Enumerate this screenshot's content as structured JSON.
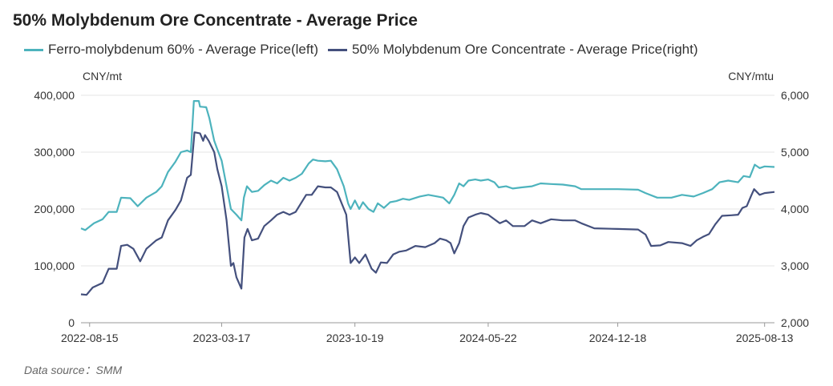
{
  "chart_data": {
    "type": "line",
    "title": "50% Molybdenum Ore Concentrate - Average Price",
    "legend_position": "top-left",
    "grid": true,
    "y_left": {
      "unit": "CNY/mt",
      "ylim": [
        0,
        400000
      ],
      "ticks": [
        "0",
        "100,000",
        "200,000",
        "300,000",
        "400,000"
      ]
    },
    "y_right": {
      "unit": "CNY/mtu",
      "ylim": [
        2000,
        6000
      ],
      "ticks": [
        "2,000",
        "3,000",
        "4,000",
        "5,000",
        "6,000"
      ]
    },
    "x_ticks": [
      "2022-08-15",
      "2023-03-17",
      "2023-10-19",
      "2024-05-22",
      "2024-12-18",
      "2025-08-13"
    ],
    "x_range": [
      "2022-08-01",
      "2025-08-29"
    ],
    "series": [
      {
        "name": "Ferro-molybdenum 60% - Average Price(left)",
        "axis": "left",
        "color": "#4db3bd",
        "points": [
          [
            "2022-08-01",
            166000
          ],
          [
            "2022-08-08",
            163000
          ],
          [
            "2022-08-22",
            175000
          ],
          [
            "2022-09-05",
            182000
          ],
          [
            "2022-09-15",
            195000
          ],
          [
            "2022-09-28",
            195000
          ],
          [
            "2022-10-05",
            220000
          ],
          [
            "2022-10-20",
            219000
          ],
          [
            "2022-11-01",
            205000
          ],
          [
            "2022-11-15",
            220000
          ],
          [
            "2022-12-01",
            230000
          ],
          [
            "2022-12-10",
            240000
          ],
          [
            "2022-12-20",
            265000
          ],
          [
            "2023-01-01",
            283000
          ],
          [
            "2023-01-10",
            300000
          ],
          [
            "2023-01-20",
            303000
          ],
          [
            "2023-01-26",
            300000
          ],
          [
            "2023-01-31",
            390000
          ],
          [
            "2023-02-08",
            390000
          ],
          [
            "2023-02-10",
            380000
          ],
          [
            "2023-02-20",
            379000
          ],
          [
            "2023-02-25",
            360000
          ],
          [
            "2023-03-05",
            320000
          ],
          [
            "2023-03-10",
            305000
          ],
          [
            "2023-03-17",
            285000
          ],
          [
            "2023-03-25",
            240000
          ],
          [
            "2023-04-01",
            200000
          ],
          [
            "2023-04-10",
            190000
          ],
          [
            "2023-04-18",
            180000
          ],
          [
            "2023-04-22",
            220000
          ],
          [
            "2023-04-27",
            240000
          ],
          [
            "2023-05-05",
            230000
          ],
          [
            "2023-05-15",
            232000
          ],
          [
            "2023-05-25",
            242000
          ],
          [
            "2023-06-05",
            250000
          ],
          [
            "2023-06-15",
            245000
          ],
          [
            "2023-06-25",
            255000
          ],
          [
            "2023-07-05",
            250000
          ],
          [
            "2023-07-15",
            255000
          ],
          [
            "2023-07-25",
            262000
          ],
          [
            "2023-08-05",
            280000
          ],
          [
            "2023-08-12",
            287000
          ],
          [
            "2023-08-20",
            285000
          ],
          [
            "2023-09-01",
            284000
          ],
          [
            "2023-09-10",
            285000
          ],
          [
            "2023-09-20",
            270000
          ],
          [
            "2023-10-01",
            240000
          ],
          [
            "2023-10-08",
            210000
          ],
          [
            "2023-10-12",
            200000
          ],
          [
            "2023-10-19",
            215000
          ],
          [
            "2023-10-26",
            200000
          ],
          [
            "2023-11-01",
            212000
          ],
          [
            "2023-11-10",
            200000
          ],
          [
            "2023-11-18",
            195000
          ],
          [
            "2023-11-25",
            210000
          ],
          [
            "2023-12-05",
            202000
          ],
          [
            "2023-12-15",
            212000
          ],
          [
            "2023-12-25",
            214000
          ],
          [
            "2024-01-05",
            218000
          ],
          [
            "2024-01-15",
            216000
          ],
          [
            "2024-02-01",
            222000
          ],
          [
            "2024-02-15",
            225000
          ],
          [
            "2024-03-01",
            222000
          ],
          [
            "2024-03-10",
            220000
          ],
          [
            "2024-03-20",
            210000
          ],
          [
            "2024-03-28",
            225000
          ],
          [
            "2024-04-05",
            245000
          ],
          [
            "2024-04-12",
            240000
          ],
          [
            "2024-04-20",
            250000
          ],
          [
            "2024-05-01",
            252000
          ],
          [
            "2024-05-10",
            250000
          ],
          [
            "2024-05-22",
            252000
          ],
          [
            "2024-06-01",
            247000
          ],
          [
            "2024-06-08",
            238000
          ],
          [
            "2024-06-20",
            240000
          ],
          [
            "2024-07-01",
            236000
          ],
          [
            "2024-07-15",
            238000
          ],
          [
            "2024-08-01",
            240000
          ],
          [
            "2024-08-15",
            245000
          ],
          [
            "2024-09-01",
            244000
          ],
          [
            "2024-09-20",
            243000
          ],
          [
            "2024-10-10",
            240000
          ],
          [
            "2024-10-20",
            235000
          ],
          [
            "2024-11-15",
            235000
          ],
          [
            "2024-12-18",
            235000
          ],
          [
            "2025-01-20",
            234000
          ],
          [
            "2025-02-01",
            228000
          ],
          [
            "2025-02-20",
            220000
          ],
          [
            "2025-03-15",
            220000
          ],
          [
            "2025-04-01",
            225000
          ],
          [
            "2025-04-20",
            222000
          ],
          [
            "2025-05-05",
            228000
          ],
          [
            "2025-05-20",
            235000
          ],
          [
            "2025-06-01",
            247000
          ],
          [
            "2025-06-15",
            250000
          ],
          [
            "2025-07-01",
            247000
          ],
          [
            "2025-07-10",
            258000
          ],
          [
            "2025-07-20",
            256000
          ],
          [
            "2025-07-28",
            278000
          ],
          [
            "2025-08-05",
            272000
          ],
          [
            "2025-08-13",
            275000
          ],
          [
            "2025-08-29",
            274000
          ]
        ]
      },
      {
        "name": "50% Molybdenum Ore Concentrate - Average Price(right)",
        "axis": "right",
        "color": "#44507d",
        "points": [
          [
            "2022-08-01",
            2500
          ],
          [
            "2022-08-10",
            2490
          ],
          [
            "2022-08-20",
            2620
          ],
          [
            "2022-09-05",
            2700
          ],
          [
            "2022-09-15",
            2950
          ],
          [
            "2022-09-28",
            2950
          ],
          [
            "2022-10-05",
            3350
          ],
          [
            "2022-10-15",
            3370
          ],
          [
            "2022-10-25",
            3300
          ],
          [
            "2022-11-05",
            3080
          ],
          [
            "2022-11-15",
            3300
          ],
          [
            "2022-12-01",
            3450
          ],
          [
            "2022-12-10",
            3500
          ],
          [
            "2022-12-20",
            3800
          ],
          [
            "2023-01-01",
            3980
          ],
          [
            "2023-01-10",
            4150
          ],
          [
            "2023-01-20",
            4550
          ],
          [
            "2023-01-26",
            4600
          ],
          [
            "2023-02-01",
            5350
          ],
          [
            "2023-02-10",
            5330
          ],
          [
            "2023-02-15",
            5200
          ],
          [
            "2023-02-18",
            5300
          ],
          [
            "2023-02-24",
            5200
          ],
          [
            "2023-03-05",
            5000
          ],
          [
            "2023-03-10",
            4700
          ],
          [
            "2023-03-17",
            4400
          ],
          [
            "2023-03-25",
            3800
          ],
          [
            "2023-04-01",
            3000
          ],
          [
            "2023-04-05",
            3050
          ],
          [
            "2023-04-10",
            2800
          ],
          [
            "2023-04-18",
            2600
          ],
          [
            "2023-04-23",
            3500
          ],
          [
            "2023-04-28",
            3650
          ],
          [
            "2023-05-05",
            3450
          ],
          [
            "2023-05-15",
            3480
          ],
          [
            "2023-05-25",
            3700
          ],
          [
            "2023-06-05",
            3800
          ],
          [
            "2023-06-15",
            3900
          ],
          [
            "2023-06-25",
            3950
          ],
          [
            "2023-07-05",
            3900
          ],
          [
            "2023-07-15",
            3950
          ],
          [
            "2023-08-01",
            4250
          ],
          [
            "2023-08-10",
            4250
          ],
          [
            "2023-08-20",
            4400
          ],
          [
            "2023-09-01",
            4380
          ],
          [
            "2023-09-10",
            4380
          ],
          [
            "2023-09-20",
            4300
          ],
          [
            "2023-10-05",
            3900
          ],
          [
            "2023-10-12",
            3050
          ],
          [
            "2023-10-19",
            3150
          ],
          [
            "2023-10-26",
            3050
          ],
          [
            "2023-11-05",
            3200
          ],
          [
            "2023-11-15",
            2950
          ],
          [
            "2023-11-22",
            2880
          ],
          [
            "2023-11-30",
            3060
          ],
          [
            "2023-12-10",
            3050
          ],
          [
            "2023-12-20",
            3200
          ],
          [
            "2023-12-30",
            3250
          ],
          [
            "2024-01-10",
            3270
          ],
          [
            "2024-01-25",
            3350
          ],
          [
            "2024-02-10",
            3330
          ],
          [
            "2024-02-25",
            3400
          ],
          [
            "2024-03-05",
            3480
          ],
          [
            "2024-03-15",
            3450
          ],
          [
            "2024-03-22",
            3400
          ],
          [
            "2024-03-28",
            3220
          ],
          [
            "2024-04-05",
            3400
          ],
          [
            "2024-04-12",
            3700
          ],
          [
            "2024-04-20",
            3850
          ],
          [
            "2024-05-01",
            3900
          ],
          [
            "2024-05-10",
            3930
          ],
          [
            "2024-05-22",
            3900
          ],
          [
            "2024-06-01",
            3820
          ],
          [
            "2024-06-10",
            3750
          ],
          [
            "2024-06-20",
            3800
          ],
          [
            "2024-07-01",
            3700
          ],
          [
            "2024-07-20",
            3700
          ],
          [
            "2024-08-01",
            3800
          ],
          [
            "2024-08-15",
            3750
          ],
          [
            "2024-09-01",
            3820
          ],
          [
            "2024-09-20",
            3800
          ],
          [
            "2024-10-10",
            3800
          ],
          [
            "2024-10-20",
            3750
          ],
          [
            "2024-11-10",
            3660
          ],
          [
            "2024-12-18",
            3650
          ],
          [
            "2025-01-20",
            3640
          ],
          [
            "2025-02-01",
            3550
          ],
          [
            "2025-02-10",
            3350
          ],
          [
            "2025-02-25",
            3360
          ],
          [
            "2025-03-10",
            3420
          ],
          [
            "2025-04-01",
            3400
          ],
          [
            "2025-04-15",
            3350
          ],
          [
            "2025-04-25",
            3450
          ],
          [
            "2025-05-05",
            3510
          ],
          [
            "2025-05-15",
            3560
          ],
          [
            "2025-05-25",
            3730
          ],
          [
            "2025-06-05",
            3880
          ],
          [
            "2025-06-20",
            3890
          ],
          [
            "2025-07-01",
            3900
          ],
          [
            "2025-07-08",
            4020
          ],
          [
            "2025-07-15",
            4050
          ],
          [
            "2025-07-22",
            4230
          ],
          [
            "2025-07-27",
            4350
          ],
          [
            "2025-08-05",
            4250
          ],
          [
            "2025-08-13",
            4280
          ],
          [
            "2025-08-29",
            4300
          ]
        ]
      }
    ]
  },
  "footer": {
    "source": "Data source：SMM"
  }
}
